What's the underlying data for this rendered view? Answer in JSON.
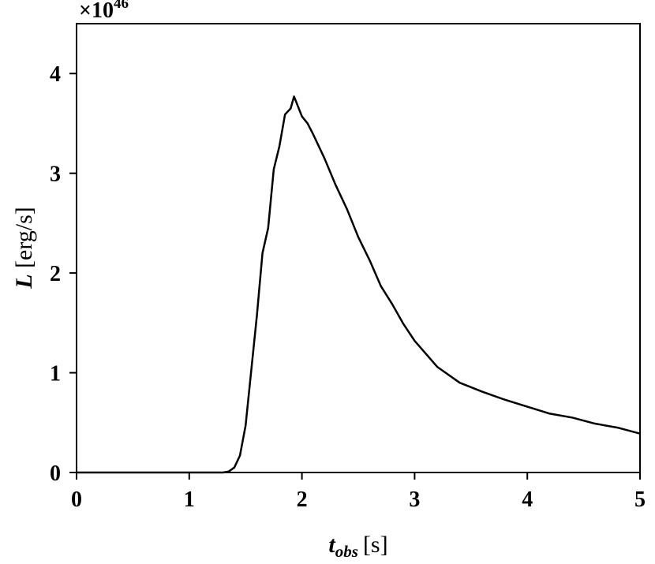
{
  "chart_data": {
    "type": "line",
    "y_scale_base": "×10",
    "y_scale_exponent": "46",
    "ylabel_symbol": "L",
    "ylabel_unit": "[erg/s]",
    "xlabel_symbol": "t",
    "xlabel_subscript": "obs",
    "xlabel_unit": "[s]",
    "x": [
      0,
      0.5,
      1.0,
      1.3,
      1.35,
      1.4,
      1.45,
      1.5,
      1.55,
      1.6,
      1.65,
      1.7,
      1.75,
      1.8,
      1.85,
      1.9,
      1.93,
      2.0,
      2.05,
      2.1,
      2.2,
      2.3,
      2.4,
      2.5,
      2.6,
      2.7,
      2.8,
      2.9,
      3.0,
      3.2,
      3.4,
      3.6,
      3.8,
      4.0,
      4.2,
      4.4,
      4.6,
      4.8,
      5.0
    ],
    "series": [
      {
        "color": "#000000",
        "values": [
          0,
          0,
          0,
          0,
          0.01,
          0.05,
          0.17,
          0.47,
          1.02,
          1.57,
          2.2,
          2.45,
          3.04,
          3.27,
          3.59,
          3.65,
          3.77,
          3.57,
          3.5,
          3.39,
          3.15,
          2.88,
          2.64,
          2.36,
          2.13,
          1.87,
          1.69,
          1.49,
          1.32,
          1.06,
          0.9,
          0.81,
          0.73,
          0.66,
          0.59,
          0.55,
          0.49,
          0.45,
          0.39
        ]
      }
    ],
    "xlim": [
      0,
      5
    ],
    "xticks": [
      0,
      1,
      2,
      3,
      4,
      5
    ],
    "ylim": [
      0,
      4.5
    ],
    "yticks": [
      0,
      1,
      2,
      3,
      4
    ]
  }
}
